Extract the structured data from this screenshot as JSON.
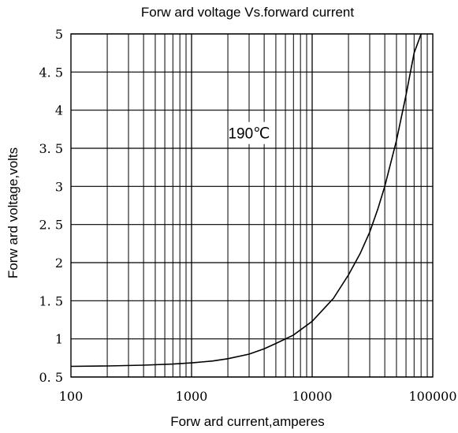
{
  "chart_data": {
    "type": "line",
    "title": "Forw ard voltage Vs.forward current",
    "xlabel": "Forw ard current,amperes",
    "ylabel": "Forw ard voltage,volts",
    "x_scale": "log",
    "xlim": [
      100,
      100000
    ],
    "ylim": [
      0.5,
      5
    ],
    "x_ticks": [
      100,
      1000,
      10000,
      100000
    ],
    "x_tick_labels": [
      "100",
      "1000",
      "10000",
      "100000"
    ],
    "y_ticks": [
      0.5,
      1,
      1.5,
      2,
      2.5,
      3,
      3.5,
      4,
      4.5,
      5
    ],
    "y_tick_labels": [
      "0. 5",
      "1",
      "1. 5",
      "2",
      "2. 5",
      "3",
      "3. 5",
      "4",
      "4. 5",
      "5"
    ],
    "grid": true,
    "annotations": [
      {
        "text": "190℃",
        "x": 3000,
        "y": 3.7
      }
    ],
    "series": [
      {
        "x": [
          100,
          200,
          400,
          700,
          1000,
          1500,
          2000,
          3000,
          4000,
          5000,
          7000,
          10000,
          15000,
          20000,
          25000,
          30000,
          35000,
          40000,
          50000,
          60000,
          70000,
          80000
        ],
        "y": [
          0.64,
          0.645,
          0.655,
          0.67,
          0.685,
          0.71,
          0.74,
          0.8,
          0.87,
          0.94,
          1.05,
          1.23,
          1.53,
          1.84,
          2.12,
          2.4,
          2.7,
          3.0,
          3.6,
          4.2,
          4.75,
          5.0
        ]
      }
    ]
  }
}
